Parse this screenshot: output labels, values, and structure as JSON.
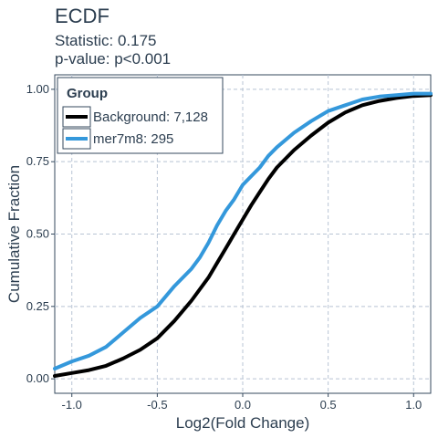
{
  "chart_data": {
    "type": "line",
    "title": "ECDF",
    "subtitle_lines": [
      "Statistic: 0.175",
      "p-value: p<0.001"
    ],
    "xlabel": "Log2(Fold Change)",
    "ylabel": "Cumulative Fraction",
    "xlim": [
      -1.1,
      1.1
    ],
    "ylim": [
      -0.05,
      1.05
    ],
    "x_ticks": [
      -1.0,
      -0.5,
      0.0,
      0.5,
      1.0
    ],
    "x_tick_labels": [
      "-1.0",
      "-0.5",
      "0.0",
      "0.5",
      "1.0"
    ],
    "y_ticks": [
      0.0,
      0.25,
      0.5,
      0.75,
      1.0
    ],
    "y_tick_labels": [
      "0.00",
      "0.25",
      "0.50",
      "0.75",
      "1.00"
    ],
    "grid": true,
    "legend": {
      "title": "Group",
      "placement": "top-left",
      "entries": [
        {
          "label": "Background: 7,128",
          "color": "#000000"
        },
        {
          "label": "mer7m8: 295",
          "color": "#3498db"
        }
      ]
    },
    "series": [
      {
        "name": "Background: 7,128",
        "color": "#000000",
        "x": [
          -1.1,
          -1.0,
          -0.9,
          -0.8,
          -0.7,
          -0.6,
          -0.5,
          -0.4,
          -0.3,
          -0.2,
          -0.15,
          -0.1,
          -0.05,
          0.0,
          0.05,
          0.1,
          0.15,
          0.2,
          0.3,
          0.4,
          0.5,
          0.6,
          0.7,
          0.8,
          0.9,
          1.0,
          1.1
        ],
        "y": [
          0.01,
          0.02,
          0.03,
          0.045,
          0.07,
          0.1,
          0.14,
          0.2,
          0.27,
          0.35,
          0.4,
          0.45,
          0.5,
          0.55,
          0.6,
          0.645,
          0.69,
          0.73,
          0.79,
          0.84,
          0.885,
          0.92,
          0.945,
          0.96,
          0.97,
          0.977,
          0.98
        ]
      },
      {
        "name": "mer7m8: 295",
        "color": "#3498db",
        "x": [
          -1.1,
          -1.0,
          -0.9,
          -0.8,
          -0.7,
          -0.6,
          -0.5,
          -0.4,
          -0.3,
          -0.25,
          -0.2,
          -0.15,
          -0.1,
          -0.05,
          0.0,
          0.05,
          0.1,
          0.15,
          0.2,
          0.3,
          0.4,
          0.5,
          0.6,
          0.7,
          0.8,
          0.9,
          1.0,
          1.1
        ],
        "y": [
          0.035,
          0.06,
          0.08,
          0.11,
          0.16,
          0.21,
          0.25,
          0.32,
          0.38,
          0.42,
          0.47,
          0.53,
          0.58,
          0.62,
          0.67,
          0.7,
          0.73,
          0.77,
          0.8,
          0.85,
          0.89,
          0.925,
          0.945,
          0.965,
          0.975,
          0.98,
          0.985,
          0.985
        ]
      }
    ]
  }
}
